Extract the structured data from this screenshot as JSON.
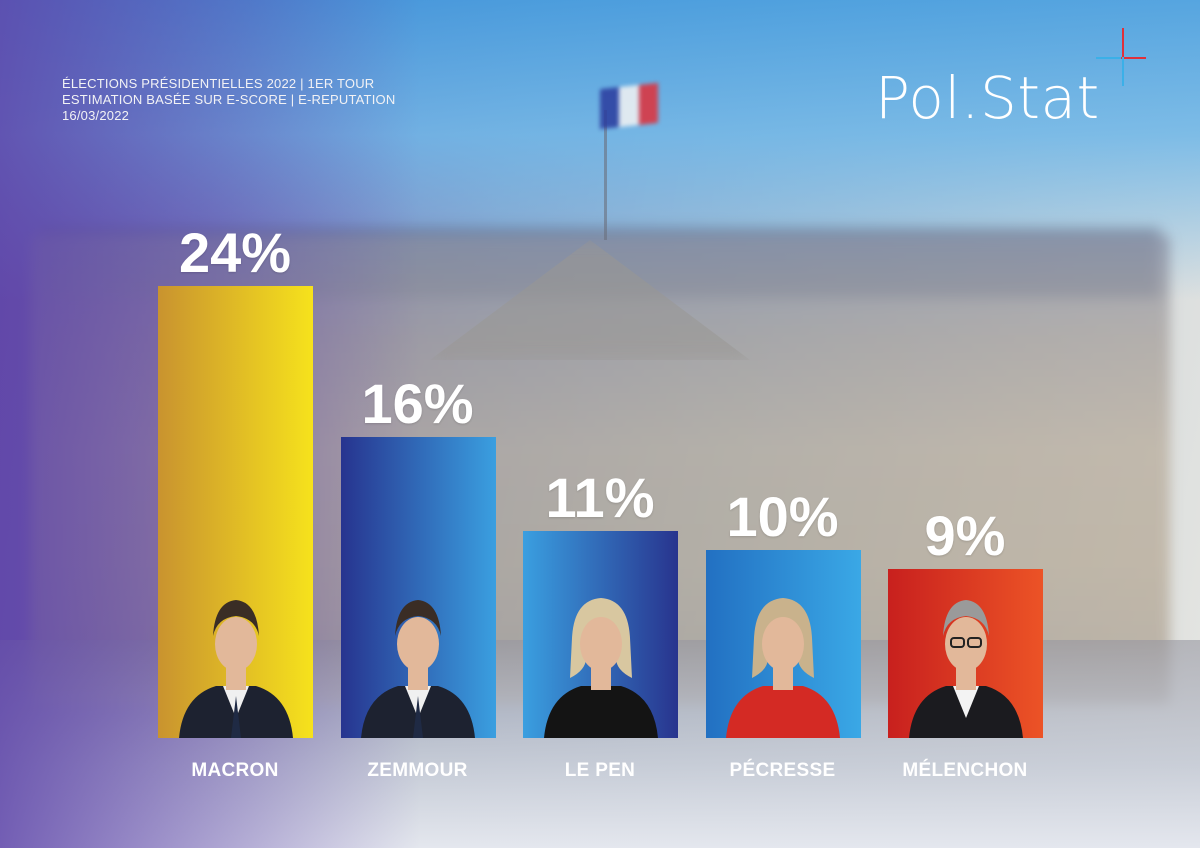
{
  "header": {
    "line1": "ÉLECTIONS PRÉSIDENTIELLES 2022 | 1ER TOUR",
    "line2": "ESTIMATION BASÉE SUR E-SCORE | E-REPUTATION",
    "line3": "16/03/2022"
  },
  "brand": {
    "logo_text": "Pol.Stat",
    "accent_red": "#e0303a",
    "accent_blue": "#3bb0e8"
  },
  "chart_data": {
    "type": "bar",
    "categories": [
      "MACRON",
      "ZEMMOUR",
      "LE PEN",
      "PÉCRESSE",
      "MÉLENCHON"
    ],
    "values": [
      24,
      16,
      11,
      10,
      9
    ],
    "value_labels": [
      "24%",
      "16%",
      "11%",
      "10%",
      "9%"
    ],
    "title": "",
    "xlabel": "",
    "ylabel": "",
    "ylim": [
      0,
      24
    ],
    "grid": false,
    "legend": "none",
    "bar_colors": [
      [
        "#c9932f",
        "#f6e21c"
      ],
      [
        "#27348f",
        "#3a9fe0"
      ],
      [
        "#3a9fe0",
        "#28348e"
      ],
      [
        "#2270c2",
        "#3aa8e6"
      ],
      [
        "#c8201e",
        "#ec5326"
      ]
    ],
    "portraits": [
      "man-dark-suit-icon",
      "man-dark-suit-icon",
      "woman-blonde-icon",
      "woman-red-jacket-icon",
      "man-glasses-icon"
    ]
  }
}
